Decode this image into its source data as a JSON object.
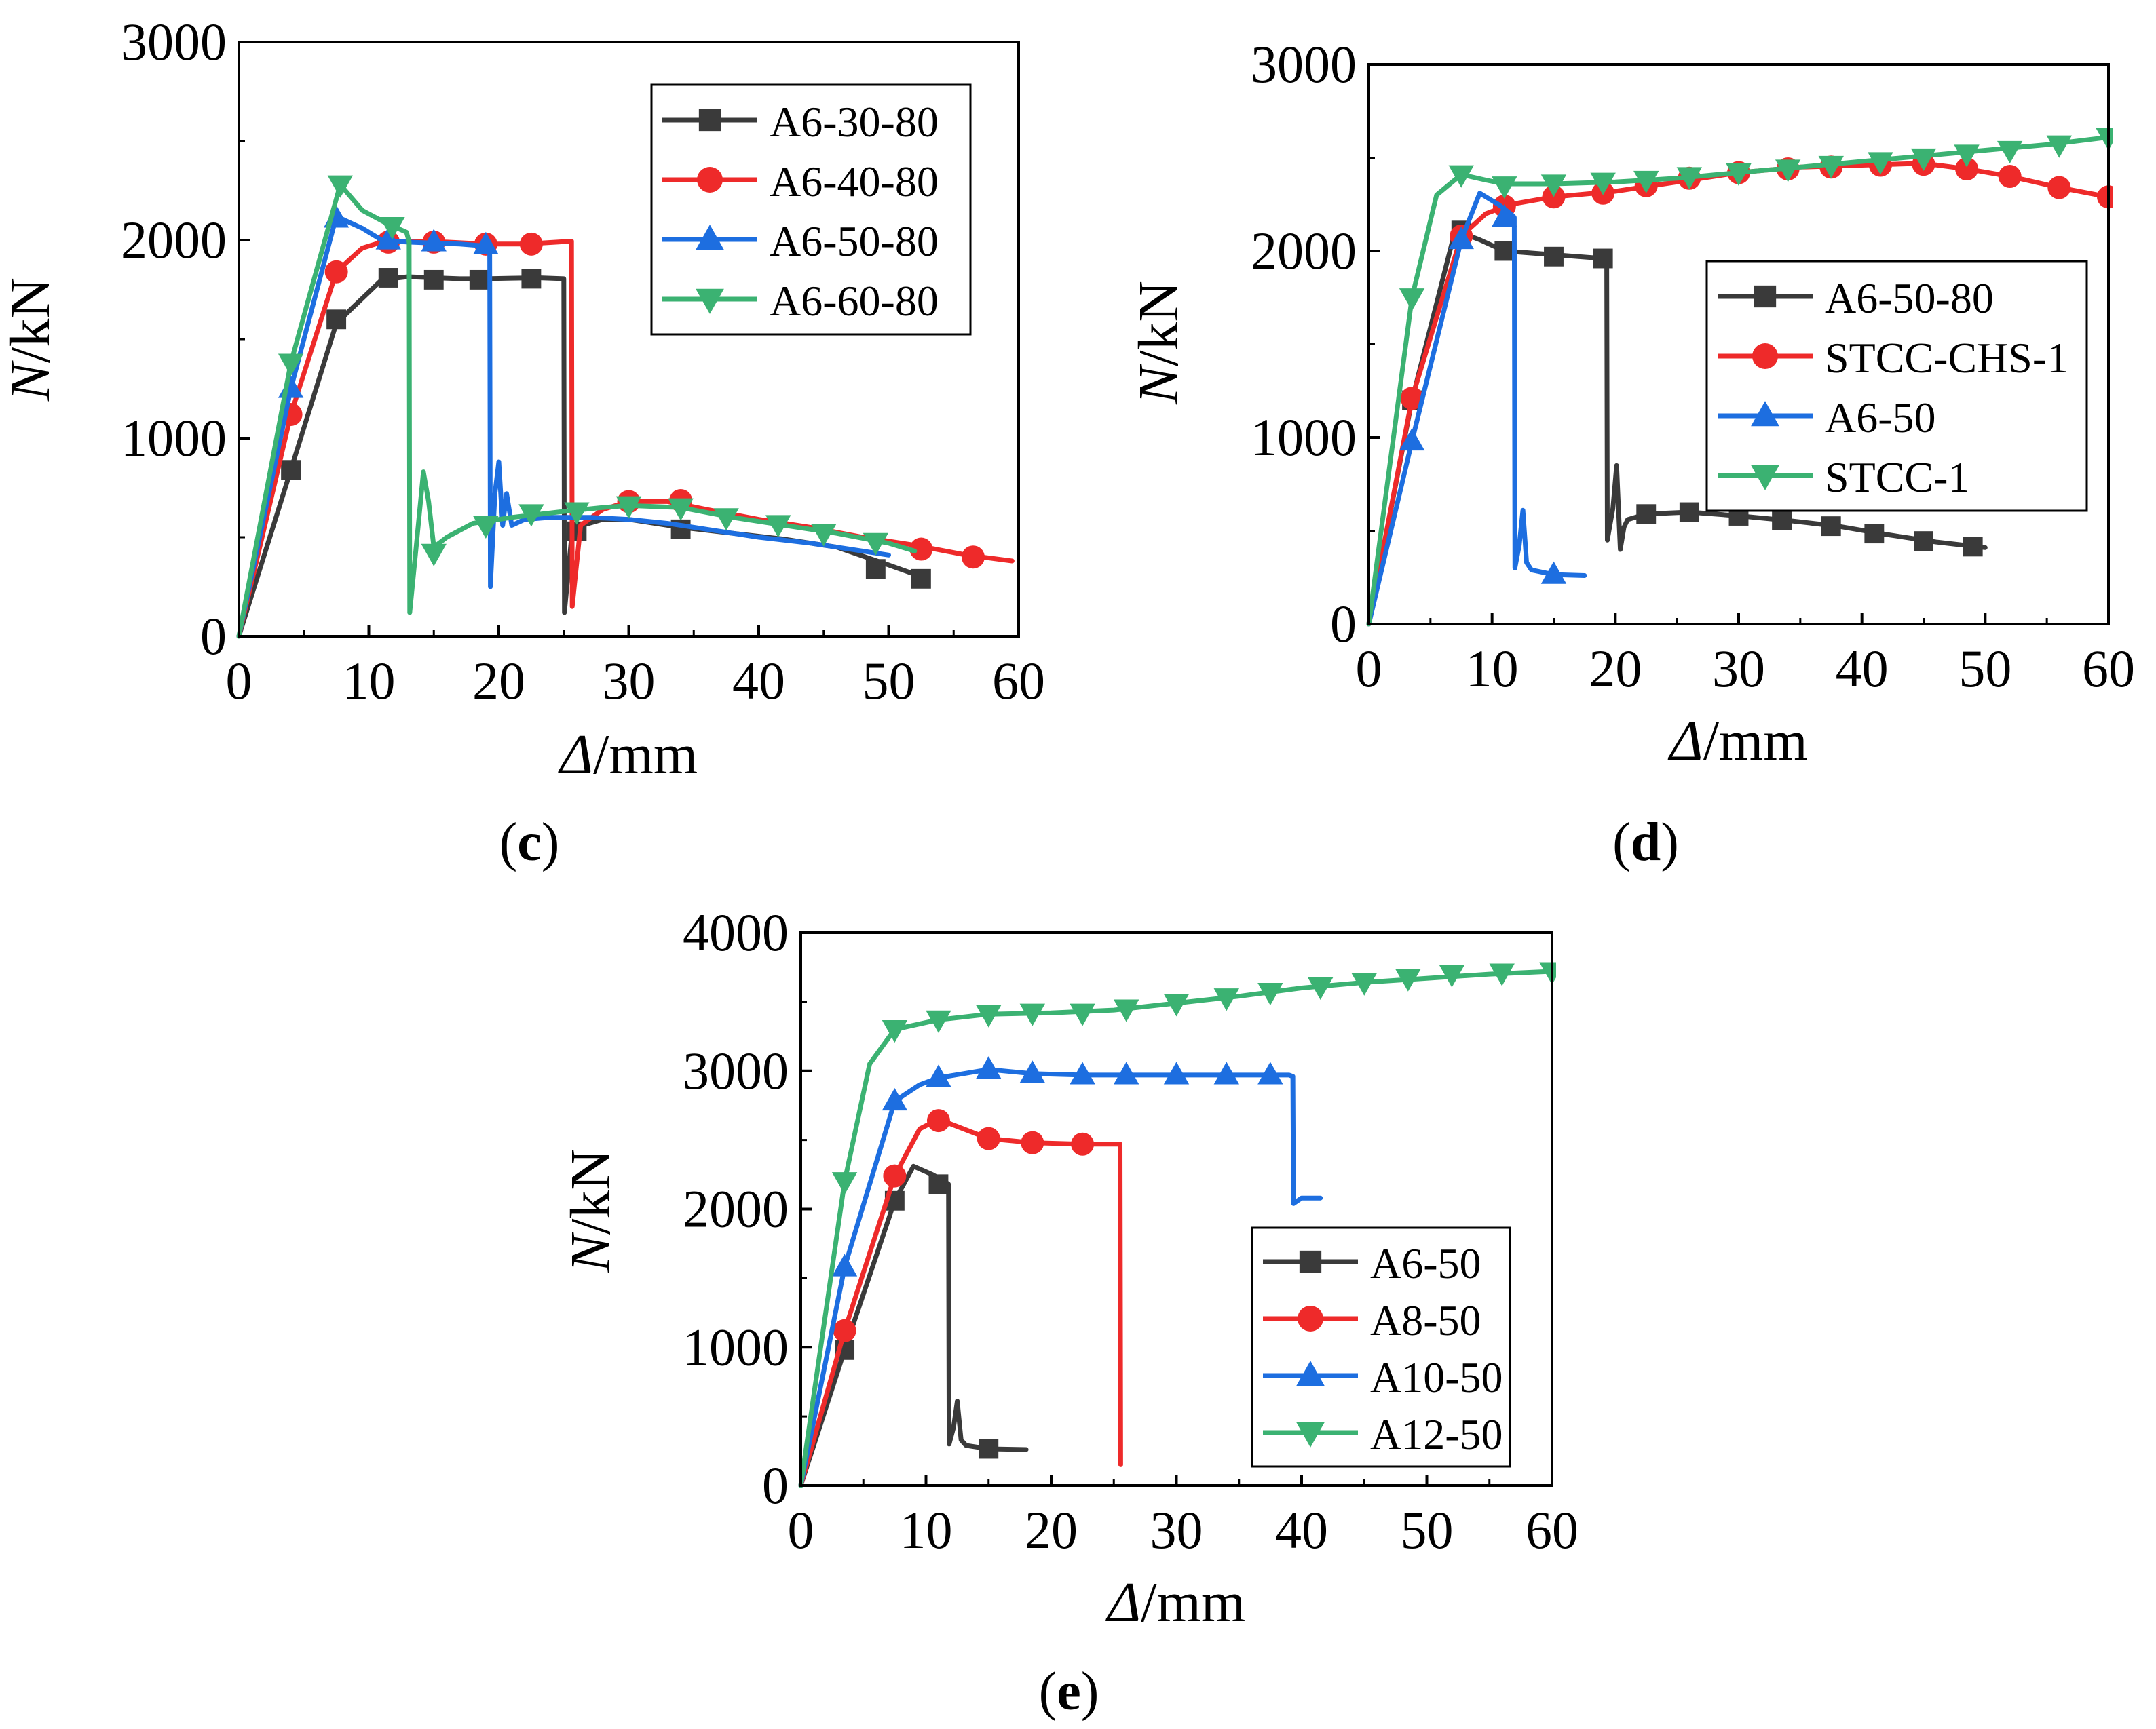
{
  "colors": {
    "black": "#3a3a3a",
    "red": "#ee2a2a",
    "blue": "#1d6ee0",
    "green": "#3bb272",
    "axis": "#000000"
  },
  "chart_data": [
    {
      "id": "c",
      "type": "line",
      "panel_label": "c",
      "xlabel_symbol": "Δ",
      "xlabel_unit": "/mm",
      "ylabel_symbol": "N",
      "ylabel_unit": "/kN",
      "xlim": [
        0,
        60
      ],
      "ylim": [
        0,
        3000
      ],
      "xticks": [
        0,
        10,
        20,
        30,
        40,
        50,
        60
      ],
      "yticks": [
        0,
        1000,
        2000,
        3000
      ],
      "legend_position": "top-right",
      "series": [
        {
          "name": "A6-30-80",
          "color_key": "black",
          "marker": "square",
          "x": [
            0,
            4,
            7.5,
            11,
            13,
            15,
            17,
            19,
            21,
            23,
            25,
            25.05,
            25.6,
            26.4,
            28,
            30,
            34,
            38,
            42,
            46,
            50,
            53
          ],
          "y": [
            0,
            840,
            1580,
            1800,
            1815,
            1810,
            1805,
            1805,
            1808,
            1810,
            1805,
            120,
            500,
            560,
            590,
            590,
            550,
            520,
            490,
            450,
            360,
            290
          ],
          "markers_x": [
            4,
            7.5,
            11.5,
            15,
            18.5,
            22.5,
            26,
            34,
            49,
            52.5
          ],
          "markers_y": [
            840,
            1600,
            1810,
            1800,
            1800,
            1805,
            530,
            540,
            340,
            290
          ]
        },
        {
          "name": "A6-40-80",
          "color_key": "red",
          "marker": "circle",
          "x": [
            0,
            4,
            7.5,
            9.5,
            11,
            13,
            16,
            19,
            22,
            24.5,
            25.6,
            25.65,
            26.3,
            28,
            30,
            33,
            36,
            40,
            44,
            48,
            52,
            56,
            59.5
          ],
          "y": [
            0,
            1120,
            1840,
            1960,
            1990,
            1995,
            1990,
            1980,
            1980,
            1990,
            1995,
            150,
            560,
            640,
            680,
            680,
            640,
            590,
            550,
            500,
            460,
            410,
            380
          ],
          "markers_x": [
            4,
            7.5,
            11.5,
            15,
            19,
            22.5,
            30,
            34,
            52.5,
            56.5
          ],
          "markers_y": [
            1120,
            1840,
            1990,
            1990,
            1980,
            1980,
            680,
            685,
            440,
            400
          ]
        },
        {
          "name": "A6-50-80",
          "color_key": "blue",
          "marker": "triangle-up",
          "x": [
            0,
            4,
            7.5,
            9.5,
            11,
            13,
            15,
            17,
            19,
            19.3,
            19.35,
            19.7,
            20,
            20.3,
            20.6,
            21,
            22,
            24,
            27,
            30,
            33,
            36,
            40,
            44,
            48,
            50
          ],
          "y": [
            0,
            1250,
            2120,
            2060,
            2000,
            1990,
            1985,
            1980,
            1970,
            1970,
            250,
            720,
            880,
            560,
            720,
            560,
            590,
            600,
            600,
            590,
            570,
            540,
            500,
            470,
            430,
            410
          ],
          "markers_x": [
            4,
            7.5,
            11.5,
            15,
            19
          ],
          "markers_y": [
            1250,
            2110,
            2000,
            1990,
            1975
          ]
        },
        {
          "name": "A6-60-80",
          "color_key": "green",
          "marker": "triangle-down",
          "x": [
            0,
            4,
            7.8,
            9.5,
            11.5,
            12.9,
            13.1,
            13.15,
            13.6,
            14.2,
            14.6,
            15,
            16,
            18,
            21,
            25,
            28,
            30,
            34,
            38,
            42,
            46,
            50,
            52
          ],
          "y": [
            0,
            1380,
            2280,
            2150,
            2080,
            2040,
            1990,
            120,
            420,
            830,
            680,
            450,
            500,
            570,
            600,
            630,
            650,
            660,
            650,
            600,
            560,
            520,
            470,
            430
          ],
          "markers_x": [
            4,
            7.8,
            11.8,
            15,
            19,
            22.5,
            26,
            30,
            34,
            37.5,
            41.5,
            45,
            49
          ],
          "markers_y": [
            1380,
            2280,
            2070,
            420,
            560,
            620,
            630,
            660,
            650,
            600,
            565,
            520,
            475
          ]
        }
      ]
    },
    {
      "id": "d",
      "type": "line",
      "panel_label": "d",
      "xlabel_symbol": "Δ",
      "xlabel_unit": "/mm",
      "ylabel_symbol": "N",
      "ylabel_unit": "/kN",
      "xlim": [
        0,
        60
      ],
      "ylim": [
        0,
        3000
      ],
      "xticks": [
        0,
        10,
        20,
        30,
        40,
        50,
        60
      ],
      "yticks": [
        0,
        1000,
        2000,
        3000
      ],
      "legend_position": "center-right",
      "series": [
        {
          "name": "A6-50-80",
          "color_key": "black",
          "marker": "square",
          "x": [
            0,
            3.5,
            7,
            9,
            11,
            13,
            15,
            17,
            19,
            19.3,
            19.35,
            19.8,
            20.1,
            20.4,
            20.7,
            21,
            22.5,
            26,
            30,
            34,
            38,
            42,
            46,
            50
          ],
          "y": [
            0,
            1200,
            2110,
            2060,
            2000,
            1990,
            1980,
            1970,
            1960,
            1960,
            450,
            620,
            850,
            400,
            520,
            560,
            590,
            600,
            580,
            555,
            525,
            480,
            440,
            410
          ],
          "markers_x": [
            3.5,
            7.5,
            11,
            15,
            19,
            22.5,
            26,
            30,
            33.5,
            37.5,
            41,
            45,
            49
          ],
          "markers_y": [
            1200,
            2110,
            2000,
            1970,
            1960,
            590,
            600,
            580,
            555,
            525,
            485,
            445,
            415
          ]
        },
        {
          "name": "STCC-CHS-1",
          "color_key": "red",
          "marker": "circle",
          "x": [
            0,
            3.5,
            7.5,
            9.5,
            11.5,
            15,
            20,
            25,
            30,
            35,
            40,
            45,
            48.5,
            52,
            56,
            60
          ],
          "y": [
            0,
            1210,
            2080,
            2200,
            2250,
            2290,
            2320,
            2370,
            2420,
            2450,
            2460,
            2470,
            2440,
            2400,
            2340,
            2290
          ],
          "markers_x": [
            3.5,
            7.5,
            11,
            15,
            19,
            22.5,
            26,
            30,
            34,
            37.5,
            41.5,
            45,
            48.5,
            52,
            56,
            60
          ],
          "markers_y": [
            1210,
            2080,
            2240,
            2290,
            2310,
            2350,
            2390,
            2420,
            2440,
            2450,
            2460,
            2465,
            2440,
            2400,
            2340,
            2290
          ]
        },
        {
          "name": "A6-50",
          "color_key": "blue",
          "marker": "triangle-up",
          "x": [
            0,
            3.5,
            7.5,
            9,
            10.5,
            11.5,
            11.8,
            11.85,
            12.2,
            12.5,
            12.8,
            13.2,
            15,
            17.5
          ],
          "y": [
            0,
            980,
            2060,
            2310,
            2250,
            2200,
            2180,
            300,
            420,
            610,
            330,
            290,
            265,
            260
          ],
          "markers_x": [
            3.5,
            7.5,
            11,
            15
          ],
          "markers_y": [
            980,
            2060,
            2180,
            265
          ]
        },
        {
          "name": "STCC-1",
          "color_key": "green",
          "marker": "triangle-down",
          "x": [
            0,
            3.5,
            5.5,
            7.5,
            9.5,
            11,
            15,
            20,
            25,
            30,
            35,
            40,
            45,
            50,
            55,
            60
          ],
          "y": [
            0,
            1750,
            2300,
            2410,
            2380,
            2360,
            2360,
            2370,
            2390,
            2420,
            2450,
            2480,
            2510,
            2540,
            2570,
            2610
          ],
          "markers_x": [
            3.5,
            7.5,
            11,
            15,
            19,
            22.5,
            26,
            30,
            34,
            37.5,
            41.5,
            45,
            48.5,
            52,
            56,
            60
          ],
          "markers_y": [
            1750,
            2410,
            2350,
            2360,
            2370,
            2380,
            2400,
            2420,
            2440,
            2460,
            2480,
            2500,
            2520,
            2540,
            2570,
            2610
          ]
        }
      ]
    },
    {
      "id": "e",
      "type": "line",
      "panel_label": "e",
      "xlabel_symbol": "Δ",
      "xlabel_unit": "/mm",
      "ylabel_symbol": "N",
      "ylabel_unit": "/kN",
      "xlim": [
        0,
        60
      ],
      "ylim": [
        0,
        4000
      ],
      "xticks": [
        0,
        10,
        20,
        30,
        40,
        50,
        60
      ],
      "yticks": [
        0,
        1000,
        2000,
        3000,
        4000
      ],
      "legend_position": "bottom-right",
      "series": [
        {
          "name": "A6-50",
          "color_key": "black",
          "marker": "square",
          "x": [
            0,
            3.5,
            7.5,
            9,
            10.5,
            11.5,
            11.8,
            11.85,
            12.2,
            12.5,
            12.8,
            13.2,
            15,
            18
          ],
          "y": [
            0,
            980,
            2060,
            2310,
            2250,
            2200,
            2180,
            300,
            420,
            610,
            330,
            290,
            265,
            260
          ],
          "markers_x": [
            3.5,
            7.5,
            11,
            15
          ],
          "markers_y": [
            980,
            2060,
            2180,
            265
          ]
        },
        {
          "name": "A8-50",
          "color_key": "red",
          "marker": "circle",
          "x": [
            0,
            3.5,
            7.5,
            9.5,
            11,
            13,
            15,
            18.5,
            22.5,
            25.5,
            25.55
          ],
          "y": [
            0,
            1120,
            2240,
            2580,
            2650,
            2580,
            2510,
            2480,
            2470,
            2470,
            150
          ],
          "markers_x": [
            3.5,
            7.5,
            11,
            15,
            18.5,
            22.5
          ],
          "markers_y": [
            1120,
            2240,
            2640,
            2510,
            2480,
            2470
          ]
        },
        {
          "name": "A10-50",
          "color_key": "blue",
          "marker": "triangle-up",
          "x": [
            0,
            3.5,
            7.5,
            9.5,
            11,
            13,
            15,
            18.5,
            22.5,
            26,
            30,
            34,
            37.5,
            39,
            39.3,
            39.35,
            40,
            41.5
          ],
          "y": [
            0,
            1580,
            2780,
            2900,
            2950,
            2980,
            3010,
            2980,
            2970,
            2970,
            2970,
            2970,
            2970,
            2970,
            2960,
            2040,
            2080,
            2080
          ],
          "markers_x": [
            3.5,
            7.5,
            11,
            15,
            18.5,
            22.5,
            26,
            30,
            34,
            37.5
          ],
          "markers_y": [
            1580,
            2780,
            2950,
            3010,
            2980,
            2970,
            2970,
            2970,
            2970,
            2970
          ]
        },
        {
          "name": "A12-50",
          "color_key": "green",
          "marker": "triangle-down",
          "x": [
            0,
            3.5,
            5.5,
            7.5,
            11,
            15,
            20,
            25,
            30,
            35,
            40,
            45,
            50,
            55,
            60
          ],
          "y": [
            0,
            2200,
            3050,
            3300,
            3370,
            3410,
            3420,
            3440,
            3490,
            3540,
            3600,
            3640,
            3670,
            3700,
            3720
          ],
          "markers_x": [
            3.5,
            7.5,
            11,
            15,
            18.5,
            22.5,
            26,
            30,
            34,
            37.5,
            41.5,
            45,
            48.5,
            52,
            56,
            60
          ],
          "markers_y": [
            2200,
            3300,
            3370,
            3410,
            3420,
            3420,
            3450,
            3490,
            3530,
            3570,
            3610,
            3640,
            3670,
            3700,
            3710,
            3720
          ]
        }
      ]
    }
  ]
}
